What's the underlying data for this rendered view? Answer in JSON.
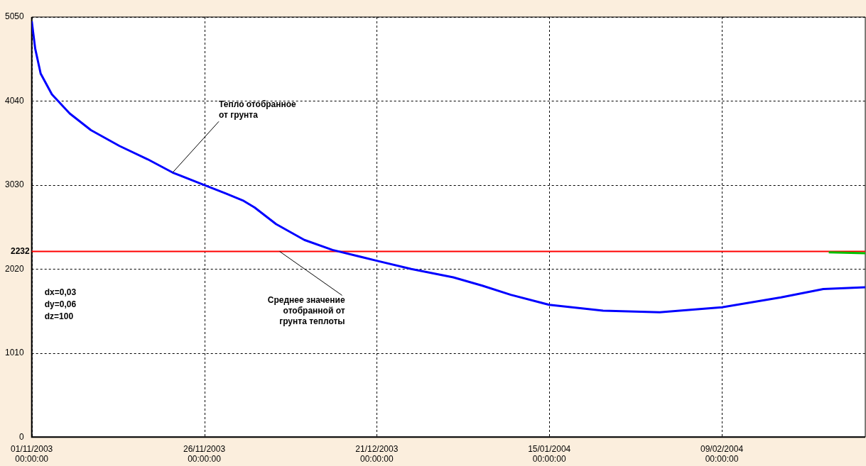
{
  "chart_data": {
    "type": "line",
    "x": [
      "2003-11-01T00:00",
      "2003-11-01T12:00",
      "2003-11-02T07:00",
      "2003-11-03T22:00",
      "2003-11-06T12:00",
      "2003-11-09T14:00",
      "2003-11-13T17:00",
      "2003-11-17T19:00",
      "2003-11-21T10:00",
      "2003-11-26T00:00",
      "2003-11-29T02:00",
      "2003-12-01T17:00",
      "2003-12-03T07:00",
      "2003-12-06T10:00",
      "2003-12-10T12:00",
      "2003-12-14T14:00",
      "2003-12-21T00:00",
      "2003-12-26T00:00",
      "2004-01-01T02:00",
      "2004-01-05T07:00",
      "2004-01-09T10:00",
      "2004-01-15T00:00",
      "2004-01-22T19:00",
      "2004-01-31T00:00",
      "2004-02-09T00:00",
      "2004-02-17T14:00",
      "2004-02-23T17:00",
      "2004-02-29T19:00"
    ],
    "series": [
      {
        "color": "#0000ff",
        "values": [
          5000,
          4670,
          4370,
          4120,
          3890,
          3690,
          3500,
          3340,
          3180,
          3030,
          2930,
          2840,
          2760,
          2560,
          2370,
          2250,
          2120,
          2020,
          1920,
          1820,
          1710,
          1590,
          1520,
          1500,
          1560,
          1680,
          1780,
          1800
        ]
      },
      {
        "color": "#00c000",
        "x": [
          "2004-02-24T12:00",
          "2004-02-29T19:00"
        ],
        "values": [
          2220,
          2210
        ]
      }
    ],
    "xlim": [
      "2003-11-01T00:00",
      "2004-02-29T19:00"
    ],
    "xticks": [
      {
        "value": "2003-11-01T00:00",
        "label": "01/11/2003 00:00:00"
      },
      {
        "value": "2003-11-26T00:00",
        "label": "26/11/2003 00:00:00"
      },
      {
        "value": "2003-12-21T00:00",
        "label": "21/12/2003 00:00:00"
      },
      {
        "value": "2004-01-15T00:00",
        "label": "15/01/2004 00:00:00"
      },
      {
        "value": "2004-02-09T00:00",
        "label": "09/02/2004 00:00:00"
      }
    ],
    "ylim": [
      0,
      5050
    ],
    "yticks": [
      0,
      1010,
      2020,
      3030,
      4040,
      5050
    ],
    "ref_lines": [
      {
        "axis": "y",
        "value": 2232,
        "label": "2232",
        "color": "#ff0000"
      }
    ],
    "annotations": [
      {
        "text": "Тепло отобранное от грунта",
        "x": "2003-11-21T10:00",
        "y": 3180
      },
      {
        "text": "Среднее значение отобранной от грунта теплоты",
        "x": "2003-12-06T22:00",
        "y": 2232
      },
      "dx=0,03",
      "dy=0,06",
      "dz=100"
    ],
    "grid": true,
    "legend": false,
    "marker": "none",
    "line_style": "solid"
  }
}
